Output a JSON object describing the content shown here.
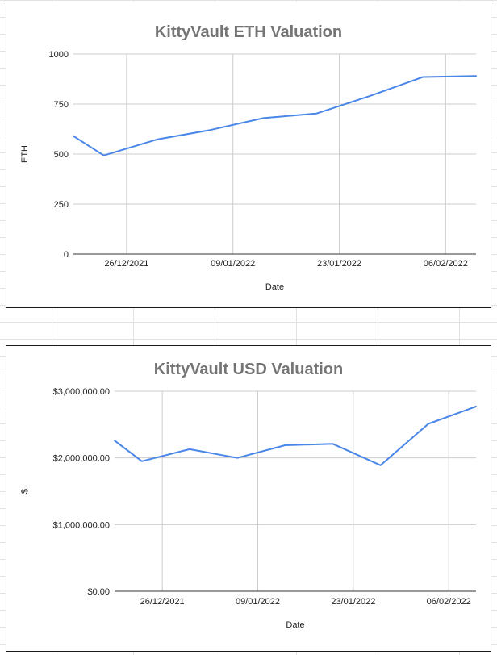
{
  "chart_data": [
    {
      "type": "line",
      "title": "KittyVault ETH Valuation",
      "xlabel": "Date",
      "ylabel": "ETH",
      "x_range": [
        "2021-12-19",
        "2022-02-10"
      ],
      "ylim": [
        0,
        1000
      ],
      "y_ticks": [
        0,
        250,
        500,
        750,
        1000
      ],
      "y_tick_labels": [
        "0",
        "250",
        "500",
        "750",
        "1000"
      ],
      "x_ticks": [
        "2021-12-26",
        "2022-01-09",
        "2022-01-23",
        "2022-02-06"
      ],
      "x_tick_labels": [
        "26/12/2021",
        "09/01/2022",
        "23/01/2022",
        "06/02/2022"
      ],
      "grid": true,
      "legend": "none",
      "series": [
        {
          "color": "#4a86e8",
          "x": [
            "2021-12-19",
            "2021-12-23",
            "2021-12-30",
            "2022-01-06",
            "2022-01-13",
            "2022-01-20",
            "2022-01-27",
            "2022-02-03",
            "2022-02-10"
          ],
          "values": [
            590,
            493,
            573,
            620,
            680,
            703,
            790,
            885,
            890
          ]
        }
      ]
    },
    {
      "type": "line",
      "title": "KittyVault USD Valuation",
      "xlabel": "Date",
      "ylabel": "$",
      "x_range": [
        "2021-12-19",
        "2022-02-10"
      ],
      "ylim": [
        0,
        3000000
      ],
      "y_ticks": [
        0,
        1000000,
        2000000,
        3000000
      ],
      "y_tick_labels": [
        "$0.00",
        "$1,000,000.00",
        "$2,000,000.00",
        "$3,000,000.00"
      ],
      "x_ticks": [
        "2021-12-26",
        "2022-01-09",
        "2022-01-23",
        "2022-02-06"
      ],
      "x_tick_labels": [
        "26/12/2021",
        "09/01/2022",
        "23/01/2022",
        "06/02/2022"
      ],
      "grid": true,
      "legend": "none",
      "series": [
        {
          "color": "#4a86e8",
          "x": [
            "2021-12-19",
            "2021-12-23",
            "2021-12-30",
            "2022-01-06",
            "2022-01-13",
            "2022-01-20",
            "2022-01-27",
            "2022-02-03",
            "2022-02-10"
          ],
          "values": [
            2260000,
            1950000,
            2130000,
            2000000,
            2190000,
            2210000,
            1890000,
            2510000,
            2770000
          ]
        }
      ]
    }
  ]
}
